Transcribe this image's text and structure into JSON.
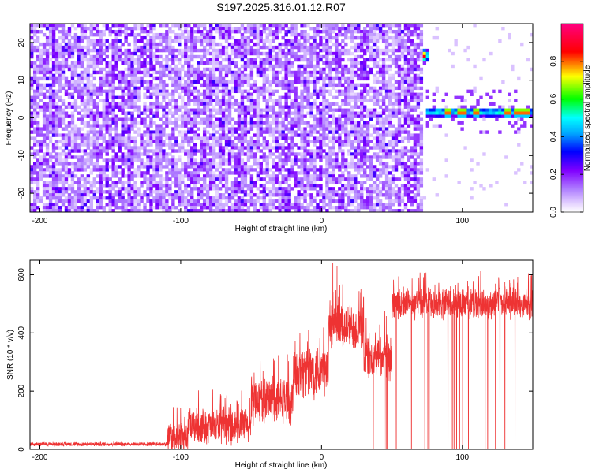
{
  "title": "S197.2025.316.01.12.R07",
  "chart_data": [
    {
      "type": "heatmap",
      "xlabel": "Height of straight line (km)",
      "ylabel": "Frequency (Hz)",
      "xlim": [
        -207,
        150
      ],
      "ylim": [
        -25,
        25
      ],
      "xticks": [
        -200,
        -100,
        0,
        100
      ],
      "yticks": [
        -20,
        -10,
        0,
        10,
        20
      ],
      "colorbar": {
        "label": "Normalized spectral amplitude",
        "range": [
          0,
          1
        ],
        "ticks": [
          0.0,
          0.2,
          0.4,
          0.6,
          0.8
        ],
        "tick_labels": [
          "0.0",
          "0.2",
          "0.4",
          "0.6",
          "0.8"
        ],
        "colormap": [
          "#ffffff",
          "#e0ccff",
          "#b080ff",
          "#8000ff",
          "#0000ff",
          "#00ffff",
          "#00ff00",
          "#ffff00",
          "#ff0000",
          "#ff0080"
        ]
      },
      "noise_region": {
        "x_range": [
          -207,
          72
        ],
        "freq_range": [
          -25,
          25
        ],
        "level": 0.2
      },
      "signal_features": [
        {
          "x": 73,
          "freq": 16.5,
          "amplitude": 0.95
        },
        {
          "x_range": [
            75,
            150
          ],
          "freq": 1.5,
          "amplitude": 0.55,
          "peaks": [
            90,
            100,
            110,
            132,
            140,
            145
          ]
        }
      ]
    },
    {
      "type": "line",
      "xlabel": "Height of straight line (km)",
      "ylabel": "SNR (10 * v/v)",
      "xlim": [
        -207,
        150
      ],
      "ylim": [
        0,
        650
      ],
      "xticks": [
        -200,
        -100,
        0,
        100
      ],
      "yticks": [
        0,
        200,
        400,
        600
      ],
      "color": "#ee3333",
      "segments": [
        {
          "x_range": [
            -207,
            -110
          ],
          "mean": 18,
          "noise": 8
        },
        {
          "x_range": [
            -110,
            -95
          ],
          "mean": 40,
          "noise": 60
        },
        {
          "x_range": [
            -95,
            -50
          ],
          "mean": 80,
          "noise": 70
        },
        {
          "x_range": [
            -50,
            -20
          ],
          "mean": 170,
          "noise": 90
        },
        {
          "x_range": [
            -20,
            5
          ],
          "mean": 270,
          "noise": 110
        },
        {
          "x_range": [
            5,
            30
          ],
          "mean": 420,
          "noise": 90
        },
        {
          "x_range": [
            30,
            50
          ],
          "mean": 320,
          "noise": 90
        },
        {
          "x_range": [
            50,
            150
          ],
          "mean": 500,
          "noise": 60
        }
      ],
      "spikes": [
        {
          "x": 8,
          "value": 640
        },
        {
          "x": 11,
          "value": 630
        },
        {
          "x": 113,
          "value": 612
        },
        {
          "x": 147,
          "value": 605
        }
      ],
      "dropouts_to_zero_after_km": 35
    }
  ]
}
